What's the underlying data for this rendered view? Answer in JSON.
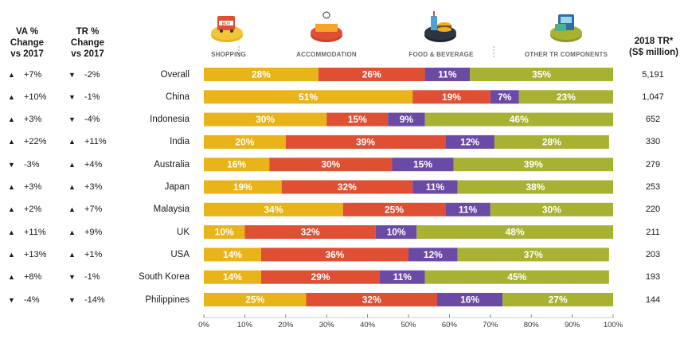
{
  "headers": {
    "va": [
      "VA %",
      "Change",
      "vs 2017"
    ],
    "tr": [
      "TR %",
      "Change",
      "vs 2017"
    ],
    "total": [
      "2018 TR*",
      "(S$ million)"
    ]
  },
  "categories": [
    {
      "label": "SHOPPING",
      "icon": "shopping-icon"
    },
    {
      "label": "ACCOMMODATION",
      "icon": "accommodation-icon"
    },
    {
      "label": "FOOD & BEVERAGE",
      "icon": "food-beverage-icon"
    },
    {
      "label": "OTHER TR COMPONENTS",
      "icon": "other-tr-components-icon"
    }
  ],
  "colors": {
    "shopping": "#e8b41a",
    "accommodation": "#df4f34",
    "food_beverage": "#6b4aa5",
    "other": "#a8b232",
    "arrow": "#1a1a1a"
  },
  "chart_data": {
    "type": "bar",
    "orientation": "horizontal",
    "stacked": true,
    "categories": [
      "Overall",
      "China",
      "Indonesia",
      "India",
      "Australia",
      "Japan",
      "Malaysia",
      "UK",
      "USA",
      "South Korea",
      "Philippines"
    ],
    "series": [
      {
        "name": "SHOPPING",
        "values": [
          28,
          51,
          30,
          20,
          16,
          19,
          34,
          10,
          14,
          14,
          25
        ]
      },
      {
        "name": "ACCOMMODATION",
        "values": [
          26,
          19,
          15,
          39,
          30,
          32,
          25,
          32,
          36,
          29,
          32
        ]
      },
      {
        "name": "FOOD & BEVERAGE",
        "values": [
          11,
          7,
          9,
          12,
          15,
          11,
          11,
          10,
          12,
          11,
          16
        ]
      },
      {
        "name": "OTHER TR COMPONENTS",
        "values": [
          35,
          23,
          46,
          28,
          39,
          38,
          30,
          48,
          37,
          45,
          27
        ]
      }
    ],
    "labels": [
      [
        "28%",
        "26%",
        "11%",
        "35%"
      ],
      [
        "51%",
        "19%",
        "7%",
        "23%"
      ],
      [
        "30%",
        "15%",
        "9%",
        "46%"
      ],
      [
        "20%",
        "39%",
        "12%",
        "28%"
      ],
      [
        "16%",
        "30%",
        "15%",
        "39%"
      ],
      [
        "19%",
        "32%",
        "11%",
        "38%"
      ],
      [
        "34%",
        "25%",
        "11%",
        "30%"
      ],
      [
        "10%",
        "32%",
        "10%",
        "48%"
      ],
      [
        "14%",
        "36%",
        "12%",
        "37%"
      ],
      [
        "14%",
        "29%",
        "11%",
        "45%"
      ],
      [
        "25%",
        "32%",
        "16%",
        "27%"
      ]
    ],
    "va_change": [
      "+7%",
      "+10%",
      "+3%",
      "+22%",
      "-3%",
      "+3%",
      "+2%",
      "+11%",
      "+13%",
      "+8%",
      "-4%"
    ],
    "va_direction": [
      "up",
      "up",
      "up",
      "up",
      "down",
      "up",
      "up",
      "up",
      "up",
      "up",
      "down"
    ],
    "tr_change": [
      "-2%",
      "-1%",
      "-4%",
      "+11%",
      "+4%",
      "+3%",
      "+7%",
      "+9%",
      "+1%",
      "-1%",
      "-14%"
    ],
    "tr_direction": [
      "down",
      "down",
      "down",
      "up",
      "up",
      "up",
      "up",
      "up",
      "up",
      "down",
      "down"
    ],
    "tr_2018": [
      "5,191",
      "1,047",
      "652",
      "330",
      "279",
      "253",
      "220",
      "211",
      "203",
      "193",
      "144"
    ],
    "xlim": [
      0,
      100
    ],
    "xticks": [
      "0%",
      "10%",
      "20%",
      "30%",
      "40%",
      "50%",
      "60%",
      "70%",
      "80%",
      "90%",
      "100%"
    ],
    "grid": "dashed vertical separators between categories"
  }
}
